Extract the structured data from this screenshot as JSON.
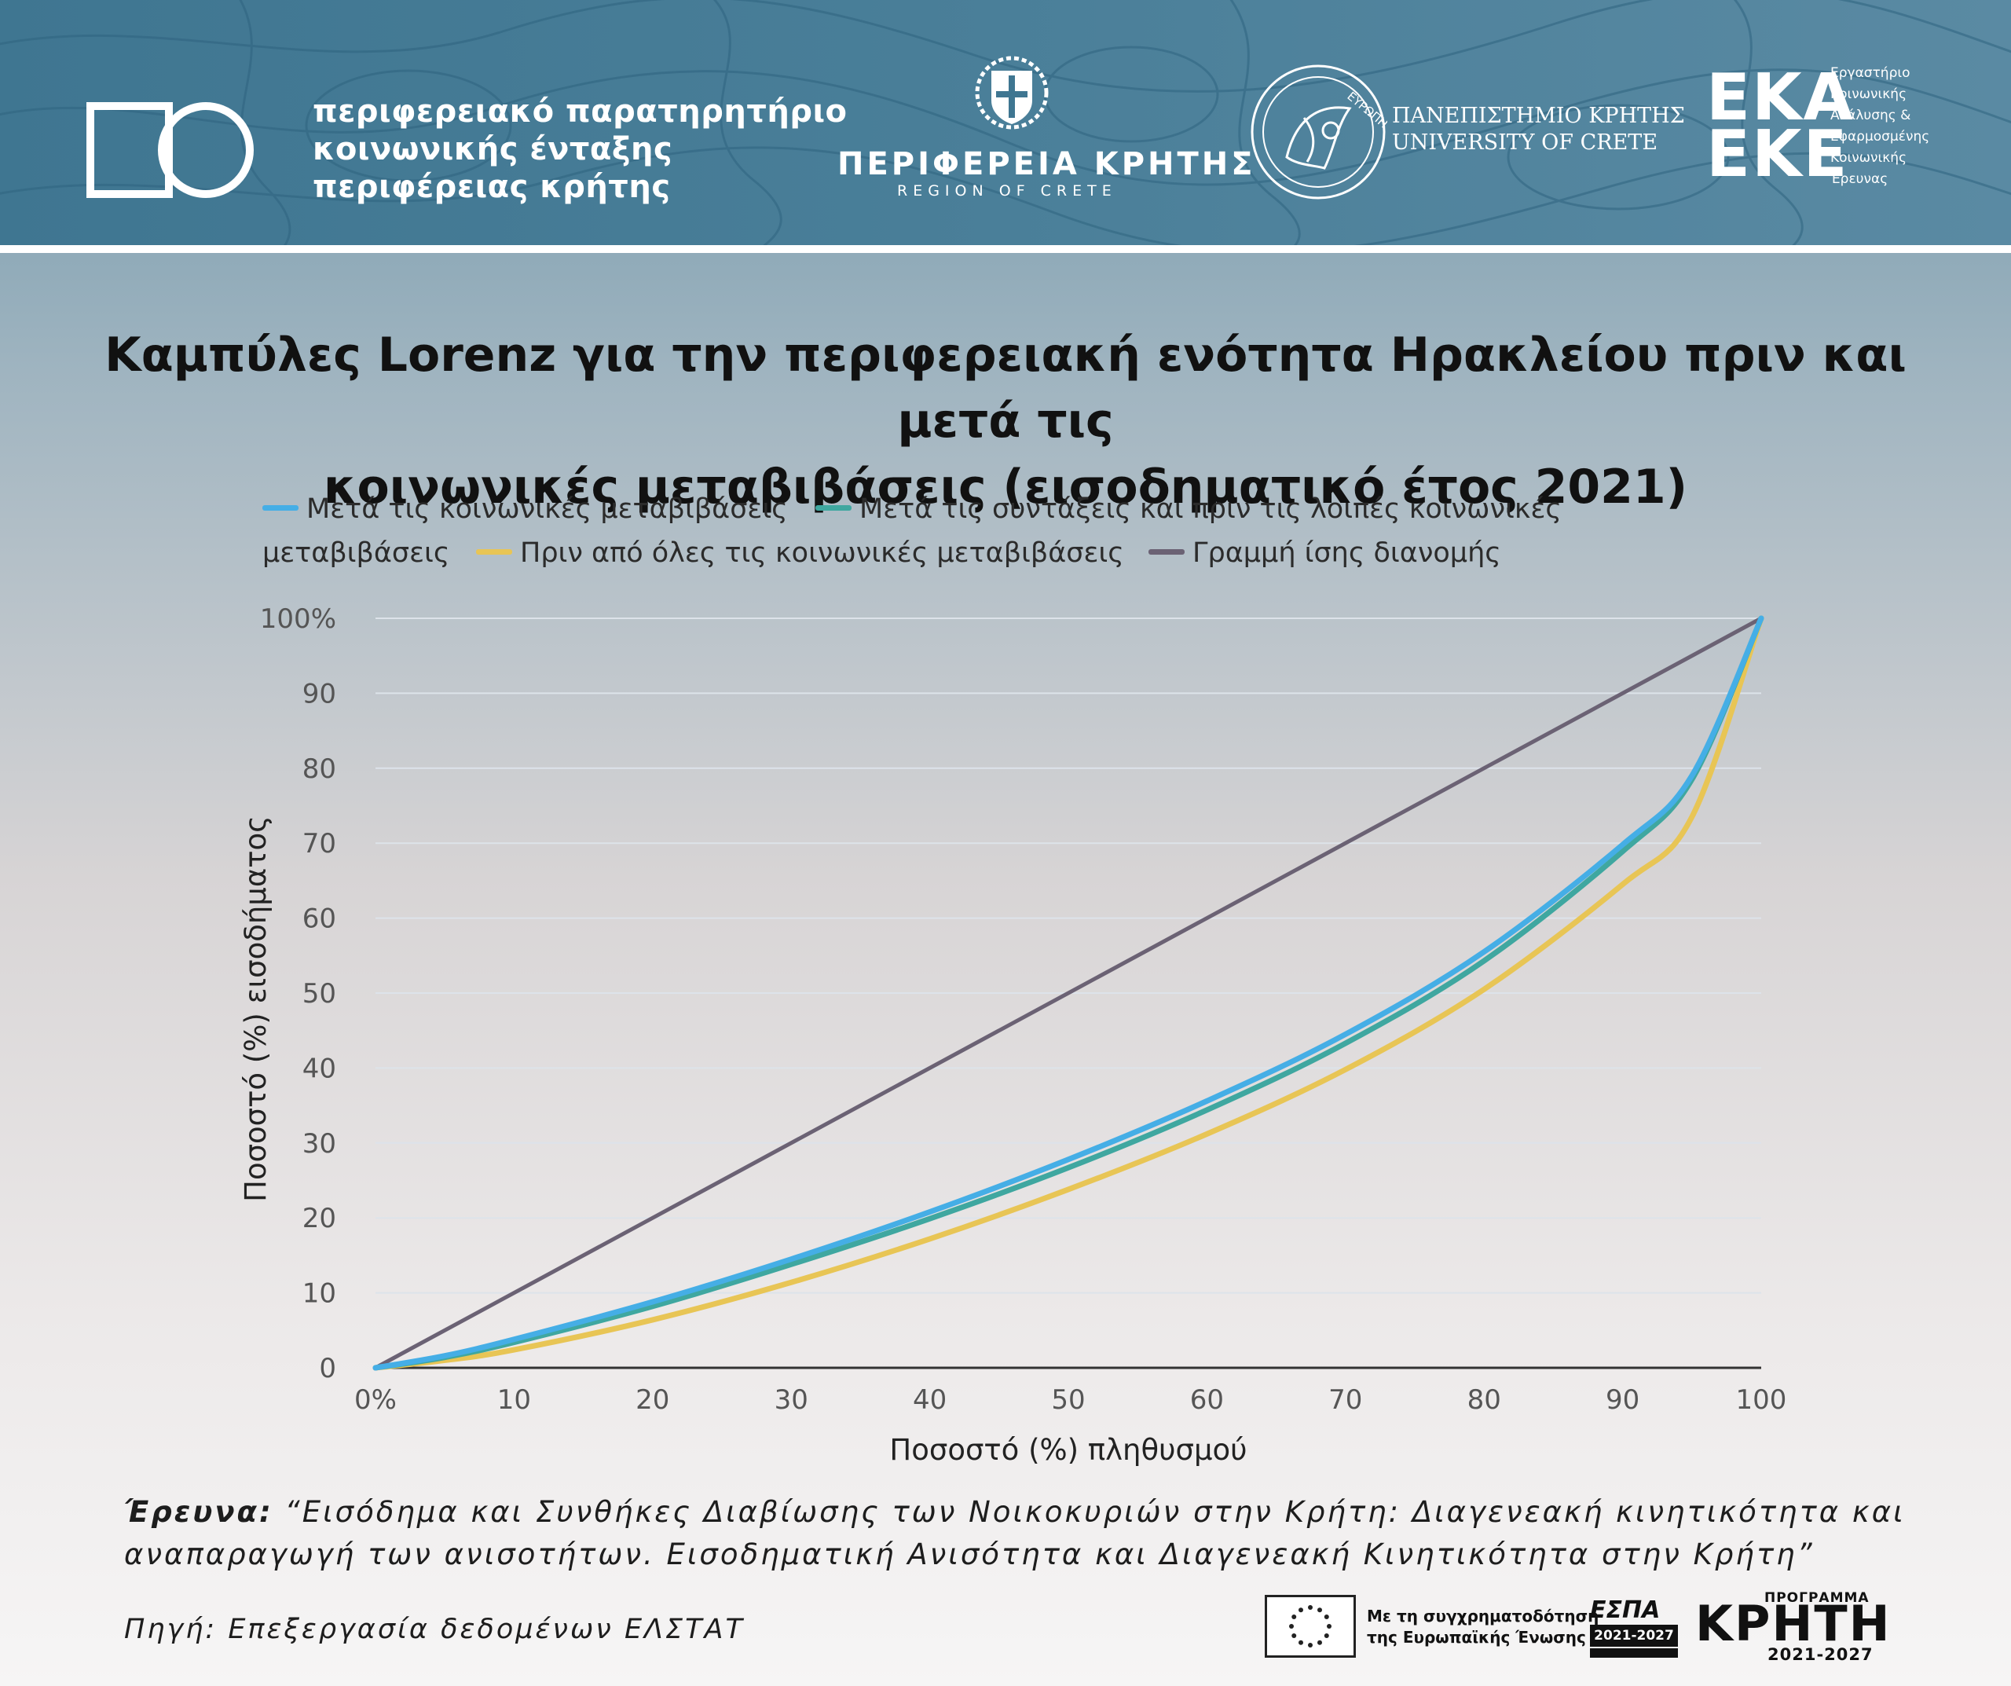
{
  "header": {
    "observatory_lines": [
      "περιφερειακό παρατηρητήριο",
      "κοινωνικής ένταξης",
      "περιφέρειας κρήτης"
    ],
    "region_name": "ΠΕΡΙΦΕΡΕΙΑ ΚΡΗΤΗΣ",
    "region_subtitle": "REGION OF CRETE",
    "university_gr": "ΠΑΝΕΠΙΣΤΗΜΙΟ ΚΡΗΤΗΣ",
    "university_en": "UNIVERSITY OF CRETE",
    "university_seal_text": "ΕΥΡΩΠΗ",
    "ekke_top": "ΕΚΑ",
    "ekke_bottom": "ΕΚΕ",
    "ekke_desc_lines": [
      "Εργαστήριο",
      "Κοινωνικής",
      "Ανάλυσης &",
      "Εφαρμοσμένης",
      "Κοινωνικής",
      "Έρευνας"
    ]
  },
  "colors": {
    "after_transfers": "#45aee6",
    "after_pensions": "#3fa7a0",
    "before_transfers": "#e8c555",
    "equality": "#6b6274",
    "gridline": "#dde3ea",
    "baseline": "#333333"
  },
  "chart_data": {
    "type": "line",
    "title": "Καμπύλες Lorenz για την περιφερειακή ενότητα Ηρακλείου πριν και μετά τις κοινωνικές μεταβιβάσεις (εισοδηματικό έτος 2021)",
    "title_lines": [
      "Καμπύλες Lorenz για την περιφερειακή ενότητα Ηρακλείου πριν και μετά τις",
      "κοινωνικές μεταβιβάσεις (εισοδηματικό έτος 2021)"
    ],
    "xlabel": "Ποσοστό (%) πληθυσμού",
    "ylabel": "Ποσοστό (%) εισοδήματος",
    "xlim": [
      0,
      100
    ],
    "ylim": [
      0,
      100
    ],
    "x_ticks": [
      "0%",
      "10",
      "20",
      "30",
      "40",
      "50",
      "60",
      "70",
      "80",
      "90",
      "100"
    ],
    "y_ticks": [
      "0",
      "10",
      "20",
      "30",
      "40",
      "50",
      "60",
      "70",
      "80",
      "90",
      "100%"
    ],
    "grid": true,
    "legend_position": "top",
    "series": [
      {
        "name": "Μετά τις κοινωνικές μεταβιβάσεις",
        "color_key": "after_transfers",
        "x": [
          0,
          5,
          10,
          20,
          30,
          40,
          50,
          60,
          70,
          80,
          90,
          95,
          100
        ],
        "y": [
          0,
          1.6,
          3.8,
          8.8,
          14.5,
          20.8,
          27.8,
          35.6,
          44.5,
          55.5,
          69.8,
          79.0,
          100
        ]
      },
      {
        "name": "Μετά τις συντάξεις και πριν τις λοιπές κοινωνικές μεταβιβάσεις",
        "color_key": "after_pensions",
        "x": [
          0,
          5,
          10,
          20,
          30,
          40,
          50,
          60,
          70,
          80,
          90,
          95,
          100
        ],
        "y": [
          0,
          1.4,
          3.4,
          8.2,
          13.8,
          19.9,
          26.7,
          34.4,
          43.3,
          54.3,
          68.9,
          78.5,
          100
        ]
      },
      {
        "name": "Πριν από όλες τις κοινωνικές μεταβιβάσεις",
        "color_key": "before_transfers",
        "x": [
          0,
          5,
          10,
          20,
          30,
          40,
          50,
          60,
          70,
          80,
          90,
          95,
          100
        ],
        "y": [
          0,
          1.0,
          2.4,
          6.4,
          11.4,
          17.2,
          23.8,
          31.2,
          39.8,
          50.5,
          64.5,
          73.5,
          100
        ]
      },
      {
        "name": "Γραμμή ίσης διανομής",
        "color_key": "equality",
        "x": [
          0,
          100
        ],
        "y": [
          0,
          100
        ]
      }
    ]
  },
  "footer": {
    "research_label": "Έρευνα:",
    "research_text": "“Εισόδημα και Συνθήκες Διαβίωσης των Νοικοκυριών στην Κρήτη: Διαγενεακή κινητικότητα και αναπαραγωγή των ανισοτήτων. Εισοδηματική Ανισότητα και Διαγενεακή  Κινητικότητα στην Κρήτη”",
    "source": "Πηγή: Επεξεργασία δεδομένων ΕΛΣΤΑΤ",
    "eu_lines": [
      "Με τη συγχρηματοδότηση",
      "της Ευρωπαϊκής Ένωσης"
    ],
    "espa_title": "ΕΣΠΑ",
    "espa_years": "2021-2027",
    "program_label": "ΠΡΟΓΡΑΜΜΑ",
    "program_name": "ΚΡΗΤΗ",
    "program_years": "2021-2027"
  }
}
